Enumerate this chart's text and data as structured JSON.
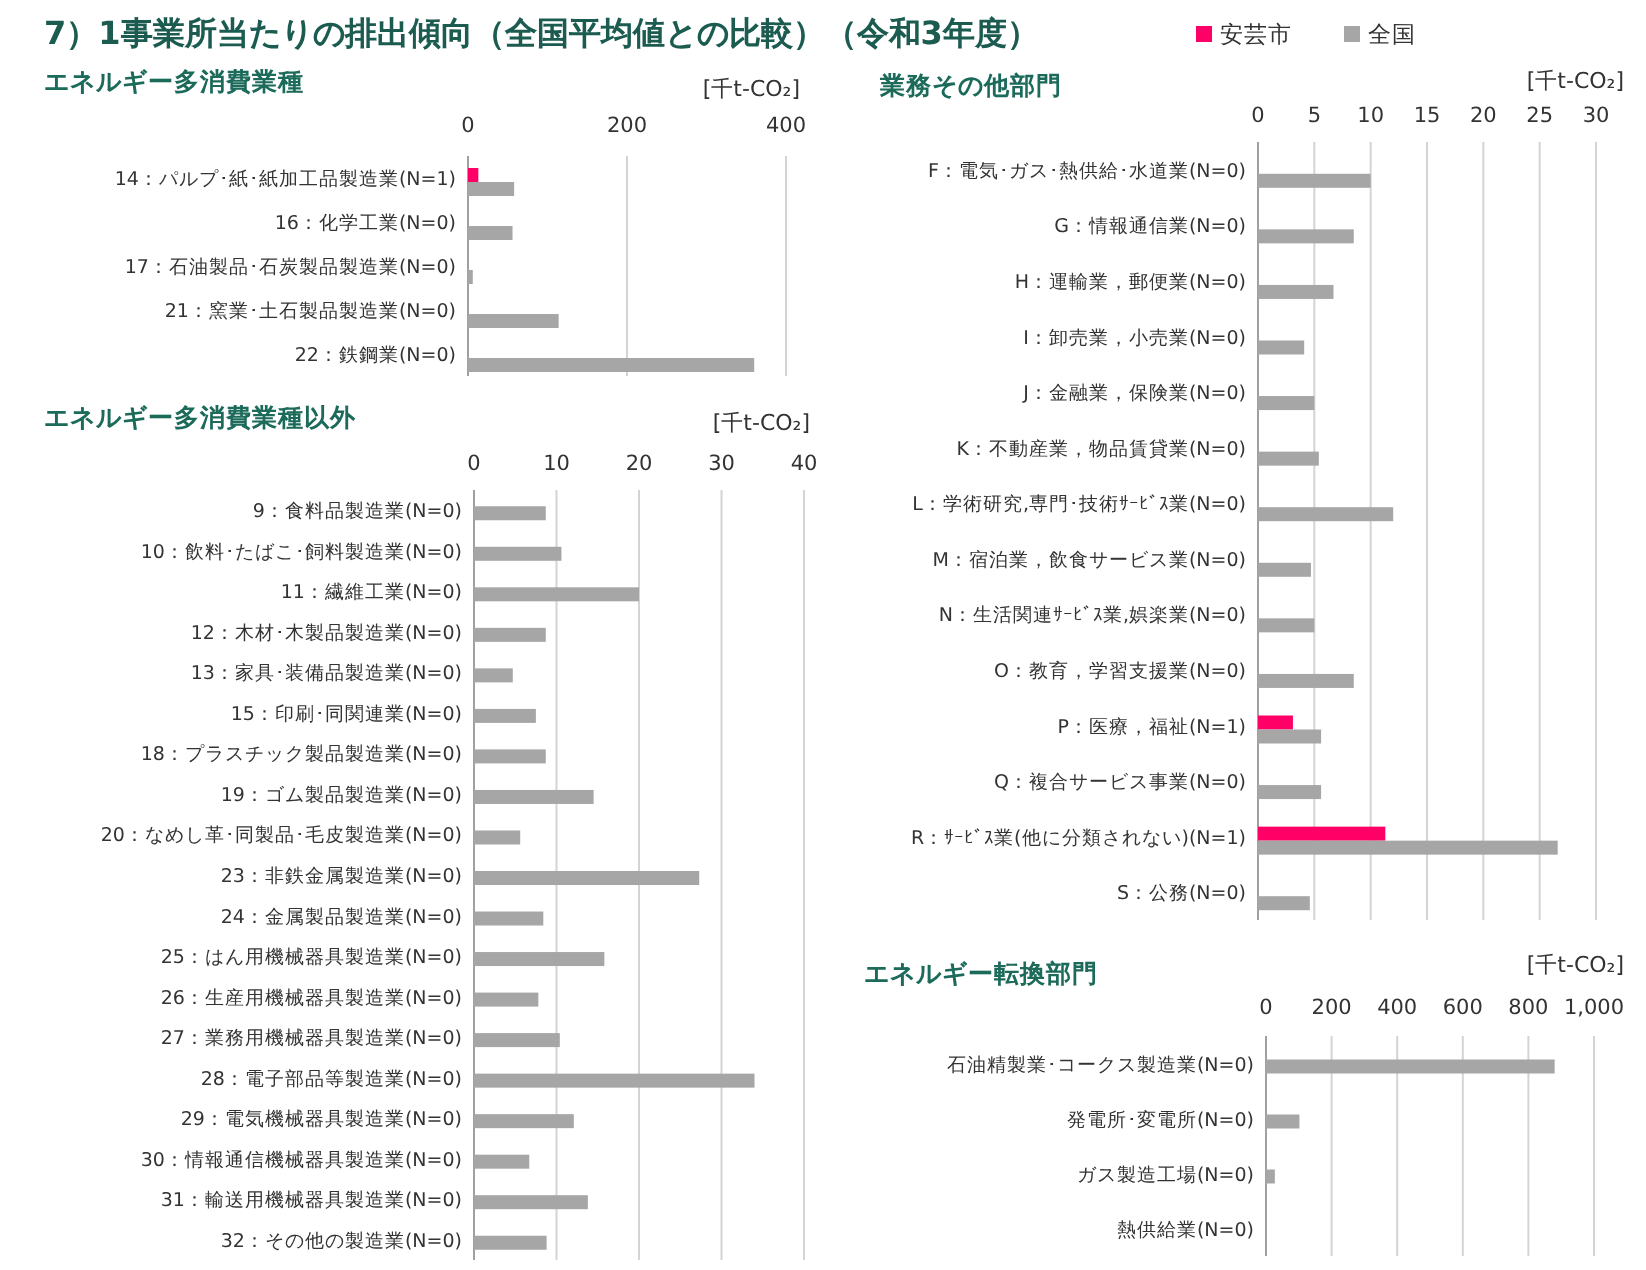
{
  "chart_data": [
    {
      "type": "bar",
      "orientation": "horizontal",
      "title": "7）1事業所当たりの排出傾向（全国平均値との比較）（令和3年度）",
      "subtitle": "エネルギー多消費業種",
      "xlabel": "[千t-CO₂]",
      "legend": "top right",
      "grid": "x",
      "categories": [
        "14：パルプ･紙･紙加工品製造業(N=1)",
        "16：化学工業(N=0)",
        "17：石油製品･石炭製品製造業(N=0)",
        "21：窯業･土石製品製造業(N=0)",
        "22：鉄鋼業(N=0)"
      ],
      "xlim": [
        0,
        400
      ],
      "xticks": [
        0,
        200,
        400
      ],
      "series": [
        {
          "name": "安芸市",
          "color": "#ff0066",
          "values": [
            13,
            null,
            null,
            null,
            null
          ]
        },
        {
          "name": "全国",
          "color": "#a6a6a6",
          "values": [
            58,
            56,
            6,
            114,
            360
          ]
        }
      ]
    },
    {
      "type": "bar",
      "orientation": "horizontal",
      "title": "エネルギー多消費業種以外",
      "xlabel": "[千t-CO₂]",
      "grid": "x",
      "categories": [
        "9：食料品製造業(N=0)",
        "10：飲料･たばこ･飼料製造業(N=0)",
        "11：繊維工業(N=0)",
        "12：木材･木製品製造業(N=0)",
        "13：家具･装備品製造業(N=0)",
        "15：印刷･同関連業(N=0)",
        "18：プラスチック製品製造業(N=0)",
        "19：ゴム製品製造業(N=0)",
        "20：なめし革･同製品･毛皮製造業(N=0)",
        "23：非鉄金属製造業(N=0)",
        "24：金属製品製造業(N=0)",
        "25：はん用機械器具製造業(N=0)",
        "26：生産用機械器具製造業(N=0)",
        "27：業務用機械器具製造業(N=0)",
        "28：電子部品等製造業(N=0)",
        "29：電気機械器具製造業(N=0)",
        "30：情報通信機械器具製造業(N=0)",
        "31：輸送用機械器具製造業(N=0)",
        "32：その他の製造業(N=0)"
      ],
      "xlim": [
        0,
        40
      ],
      "xticks": [
        0,
        10,
        20,
        30,
        40
      ],
      "series": [
        {
          "color": "#a6a6a6",
          "values": [
            8.7,
            10.6,
            20.0,
            8.7,
            4.7,
            7.5,
            8.7,
            14.5,
            5.6,
            27.3,
            8.4,
            15.8,
            7.8,
            10.4,
            34.0,
            12.1,
            6.7,
            13.8,
            8.8
          ]
        }
      ]
    },
    {
      "type": "bar",
      "orientation": "horizontal",
      "title": "業務その他部門",
      "xlabel": "[千t-CO₂]",
      "grid": "x",
      "categories": [
        "F：電気･ガス･熱供給･水道業(N=0)",
        "G：情報通信業(N=0)",
        "H：運輸業，郵便業(N=0)",
        "I：卸売業，小売業(N=0)",
        "J：金融業，保険業(N=0)",
        "K：不動産業，物品賃貸業(N=0)",
        "L：学術研究,専門･技術ｻｰﾋﾞｽ業(N=0)",
        "M：宿泊業，飲食サービス業(N=0)",
        "N：生活関連ｻｰﾋﾞｽ業,娯楽業(N=0)",
        "O：教育，学習支援業(N=0)",
        "P：医療，福祉(N=1)",
        "Q：複合サービス事業(N=0)",
        "R：ｻｰﾋﾞｽ業(他に分類されない)(N=1)",
        "S：公務(N=0)"
      ],
      "xlim": [
        0,
        30
      ],
      "xticks": [
        0,
        5,
        10,
        15,
        20,
        25,
        30
      ],
      "series": [
        {
          "color": "#ff0066",
          "values": [
            null,
            null,
            null,
            null,
            null,
            null,
            null,
            null,
            null,
            null,
            3.1,
            null,
            11.3,
            null
          ]
        },
        {
          "color": "#a6a6a6",
          "values": [
            10.0,
            8.5,
            6.7,
            4.1,
            5.0,
            5.4,
            12.0,
            4.7,
            5.0,
            8.5,
            5.6,
            5.6,
            26.6,
            4.6
          ]
        }
      ]
    },
    {
      "type": "bar",
      "orientation": "horizontal",
      "title": "エネルギー転換部門",
      "xlabel": "[千t-CO₂]",
      "grid": "x",
      "categories": [
        "石油精製業･コークス製造業(N=0)",
        "発電所･変電所(N=0)",
        "ガス製造工場(N=0)",
        "熱供給業(N=0)"
      ],
      "xlim": [
        0,
        1000
      ],
      "xticks": [
        0,
        200,
        400,
        600,
        800,
        {
          "value": 1000,
          "label": "1,000"
        }
      ],
      "series": [
        {
          "color": "#a6a6a6",
          "values": [
            880,
            102,
            27,
            0
          ]
        }
      ]
    }
  ]
}
